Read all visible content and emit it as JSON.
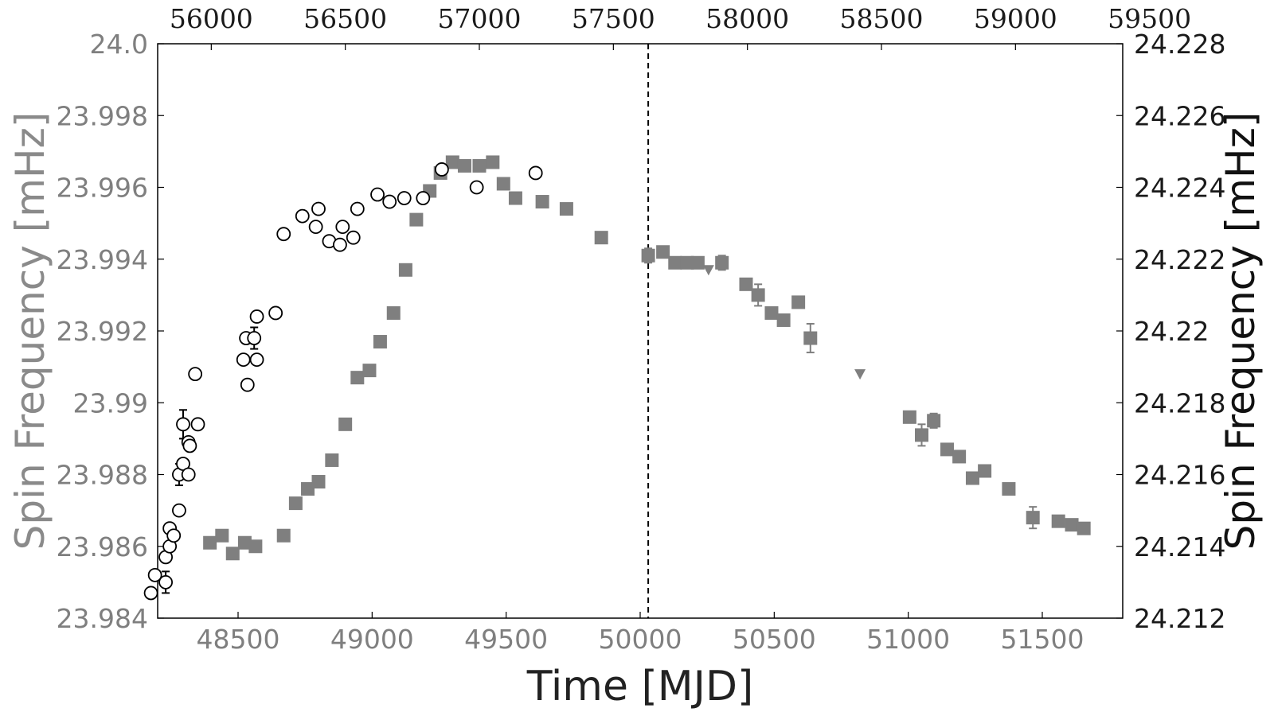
{
  "chart_data": {
    "type": "scatter",
    "title": "",
    "xlabel": "Time [MJD]",
    "ylabel_left": "Spin Frequency [mHz]",
    "ylabel_right": "Spin Frequency [mHz]",
    "x_bottom": {
      "lim": [
        48200,
        51800
      ],
      "ticks": [
        48500,
        49000,
        49500,
        50000,
        50500,
        51000,
        51500
      ],
      "tick_labels": [
        "48500",
        "49000",
        "49500",
        "50000",
        "50500",
        "51000",
        "51500"
      ]
    },
    "x_top": {
      "lim": [
        55800,
        59400
      ],
      "ticks": [
        56000,
        56500,
        57000,
        57500,
        58000,
        58500,
        59000,
        59500
      ],
      "tick_labels": [
        "56000",
        "56500",
        "57000",
        "57500",
        "58000",
        "58500",
        "59000",
        "59500"
      ]
    },
    "y_left": {
      "lim": [
        23.984,
        24.0
      ],
      "ticks": [
        23.984,
        23.986,
        23.988,
        23.99,
        23.992,
        23.994,
        23.996,
        23.998,
        24.0
      ],
      "tick_labels": [
        "23.984",
        "23.986",
        "23.988",
        "23.99",
        "23.992",
        "23.994",
        "23.996",
        "23.998",
        "24.0"
      ]
    },
    "y_right": {
      "lim": [
        24.212,
        24.228
      ],
      "ticks": [
        24.212,
        24.214,
        24.216,
        24.218,
        24.22,
        24.222,
        24.224,
        24.226,
        24.228
      ],
      "tick_labels": [
        "24.212",
        "24.214",
        "24.216",
        "24.218",
        "24.22",
        "24.222",
        "24.224",
        "24.226",
        "24.228"
      ]
    },
    "vline": {
      "x": 50030,
      "style": "dashed"
    },
    "grid": false,
    "series": [
      {
        "marker": "square",
        "axes": "bottom-left",
        "color": "#7f7f7f",
        "points": [
          [
            48395,
            23.9861,
            0
          ],
          [
            48440,
            23.9863,
            0
          ],
          [
            48480,
            23.9858,
            0
          ],
          [
            48525,
            23.9861,
            0
          ],
          [
            48565,
            23.986,
            0
          ],
          [
            48670,
            23.9863,
            0
          ],
          [
            48715,
            23.9872,
            0
          ],
          [
            48760,
            23.9876,
            0
          ],
          [
            48800,
            23.9878,
            0
          ],
          [
            48850,
            23.9884,
            0
          ],
          [
            48900,
            23.9894,
            0
          ],
          [
            48945,
            23.9907,
            0
          ],
          [
            48990,
            23.9909,
            0
          ],
          [
            49030,
            23.9917,
            0
          ],
          [
            49080,
            23.9925,
            0
          ],
          [
            49125,
            23.9937,
            0
          ],
          [
            49165,
            23.9951,
            0
          ],
          [
            49215,
            23.9959,
            0
          ],
          [
            49255,
            23.9964,
            0
          ],
          [
            49300,
            23.9967,
            0
          ],
          [
            49345,
            23.9966,
            0
          ],
          [
            49400,
            23.9966,
            0
          ],
          [
            49450,
            23.9967,
            0
          ],
          [
            49490,
            23.9961,
            0
          ],
          [
            49535,
            23.9957,
            0
          ],
          [
            49635,
            23.9956,
            0
          ],
          [
            49725,
            23.9954,
            0
          ],
          [
            49855,
            23.9946,
            0
          ],
          [
            50030,
            23.9941,
            0.0002
          ],
          [
            50085,
            23.9942,
            0
          ],
          [
            50130,
            23.9939,
            0
          ],
          [
            50175,
            23.9939,
            0
          ],
          [
            50215,
            23.9939,
            0
          ],
          [
            50305,
            23.9939,
            0.0002
          ],
          [
            50395,
            23.9933,
            0
          ],
          [
            50440,
            23.993,
            0.0003
          ],
          [
            50490,
            23.9925,
            0
          ],
          [
            50535,
            23.9923,
            0
          ],
          [
            50590,
            23.9928,
            0
          ],
          [
            50635,
            23.9918,
            0.0004
          ],
          [
            51005,
            23.9896,
            0
          ],
          [
            51050,
            23.9891,
            0.0003
          ],
          [
            51095,
            23.9895,
            0.0002
          ],
          [
            51145,
            23.9887,
            0
          ],
          [
            51190,
            23.9885,
            0
          ],
          [
            51240,
            23.9879,
            0
          ],
          [
            51285,
            23.9881,
            0
          ],
          [
            51375,
            23.9876,
            0
          ],
          [
            51465,
            23.9868,
            0.0003
          ],
          [
            51560,
            23.9867,
            0
          ],
          [
            51610,
            23.9866,
            0
          ],
          [
            51655,
            23.9865,
            0
          ]
        ]
      },
      {
        "marker": "triangle-down",
        "axes": "bottom-left",
        "color": "#7f7f7f",
        "points": [
          [
            50255,
            23.9937,
            0
          ],
          [
            50820,
            23.9908,
            0
          ]
        ]
      },
      {
        "marker": "open-circle",
        "axes": "top-right",
        "color": "#000000",
        "points": [
          [
            55775,
            24.2127,
            0
          ],
          [
            55790,
            24.2132,
            0
          ],
          [
            55830,
            24.213,
            0.0003
          ],
          [
            55830,
            24.2137,
            0
          ],
          [
            55845,
            24.214,
            0
          ],
          [
            55845,
            24.2145,
            0
          ],
          [
            55860,
            24.2143,
            0
          ],
          [
            55880,
            24.215,
            0
          ],
          [
            55880,
            24.216,
            0.0003
          ],
          [
            55895,
            24.2163,
            0
          ],
          [
            55895,
            24.2174,
            0.0004
          ],
          [
            55915,
            24.216,
            0
          ],
          [
            55915,
            24.2169,
            0
          ],
          [
            55920,
            24.2168,
            0
          ],
          [
            55940,
            24.2188,
            0
          ],
          [
            55950,
            24.2174,
            0
          ],
          [
            56120,
            24.2192,
            0
          ],
          [
            56130,
            24.2198,
            0
          ],
          [
            56135,
            24.2185,
            0
          ],
          [
            56160,
            24.2198,
            0.0003
          ],
          [
            56170,
            24.2192,
            0
          ],
          [
            56170,
            24.2204,
            0
          ],
          [
            56240,
            24.2205,
            0
          ],
          [
            56270,
            24.2227,
            0
          ],
          [
            56340,
            24.2232,
            0
          ],
          [
            56390,
            24.2229,
            0
          ],
          [
            56400,
            24.2234,
            0
          ],
          [
            56440,
            24.2225,
            0
          ],
          [
            56480,
            24.2224,
            0
          ],
          [
            56490,
            24.2229,
            0
          ],
          [
            56530,
            24.2226,
            0
          ],
          [
            56545,
            24.2234,
            0
          ],
          [
            56620,
            24.2238,
            0
          ],
          [
            56665,
            24.2236,
            0
          ],
          [
            56720,
            24.2237,
            0
          ],
          [
            56790,
            24.2237,
            0
          ],
          [
            56860,
            24.2245,
            0
          ],
          [
            56990,
            24.224,
            0
          ],
          [
            57210,
            24.2244,
            0
          ]
        ]
      }
    ]
  }
}
